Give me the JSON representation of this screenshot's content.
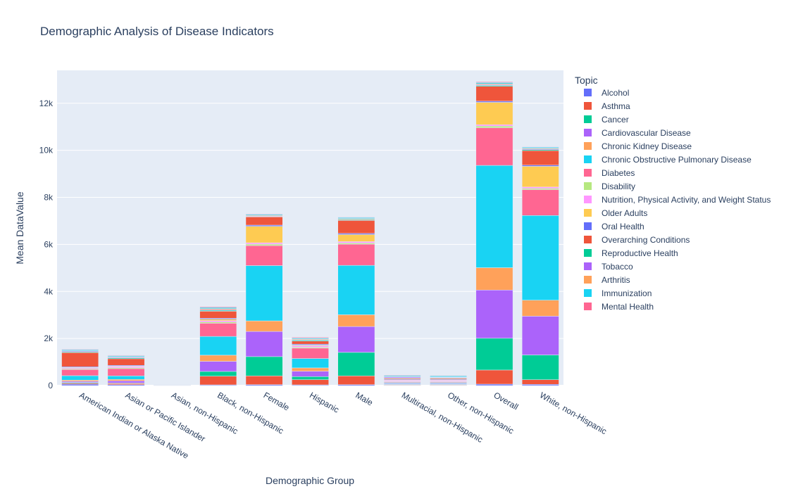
{
  "chart_data": {
    "type": "bar",
    "barmode": "stack",
    "title": "Demographic Analysis of Disease Indicators",
    "xlabel": "Demographic Group",
    "ylabel": "Mean DataValue",
    "ylim": [
      0,
      13400
    ],
    "yticks": [
      0,
      2000,
      4000,
      6000,
      8000,
      10000,
      12000
    ],
    "ytick_labels": [
      "0",
      "2k",
      "4k",
      "6k",
      "8k",
      "10k",
      "12k"
    ],
    "grid": true,
    "legend": {
      "title": "Topic",
      "placement": "right"
    },
    "categories": [
      "American Indian or Alaska Native",
      "Asian or Pacific Islander",
      "Asian, non-Hispanic",
      "Black, non-Hispanic",
      "Female",
      "Hispanic",
      "Male",
      "Multiracial, non-Hispanic",
      "Other, non-Hispanic",
      "Overall",
      "White, non-Hispanic"
    ],
    "series": [
      {
        "name": "Alcohol",
        "color": "#636efa",
        "values": [
          60,
          40,
          5,
          30,
          40,
          30,
          40,
          10,
          10,
          60,
          50
        ]
      },
      {
        "name": "Asthma",
        "color": "#EF553B",
        "values": [
          40,
          50,
          5,
          370,
          370,
          220,
          370,
          20,
          20,
          600,
          200
        ]
      },
      {
        "name": "Cancer",
        "color": "#00cc96",
        "values": [
          30,
          20,
          3,
          200,
          820,
          130,
          1000,
          20,
          20,
          1350,
          1050
        ]
      },
      {
        "name": "Cardiovascular Disease",
        "color": "#ab63fa",
        "values": [
          50,
          90,
          3,
          430,
          1070,
          230,
          1100,
          30,
          30,
          2050,
          1650
        ]
      },
      {
        "name": "Chronic Kidney Disease",
        "color": "#FFA15A",
        "values": [
          50,
          60,
          2,
          260,
          450,
          140,
          500,
          20,
          20,
          950,
          680
        ]
      },
      {
        "name": "Chronic Obstructive Pulmonary Disease",
        "color": "#19d3f3",
        "values": [
          190,
          150,
          3,
          800,
          2350,
          400,
          2100,
          30,
          30,
          4350,
          3600
        ]
      },
      {
        "name": "Diabetes",
        "color": "#FF6692",
        "values": [
          260,
          310,
          3,
          560,
          850,
          440,
          900,
          30,
          30,
          1600,
          1100
        ]
      },
      {
        "name": "Disability",
        "color": "#B6E880",
        "values": [
          30,
          40,
          2,
          50,
          60,
          40,
          50,
          20,
          20,
          70,
          50
        ]
      },
      {
        "name": "Nutrition, Physical Activity, and Weight Status",
        "color": "#FF97FF",
        "values": [
          40,
          50,
          2,
          60,
          60,
          60,
          60,
          40,
          40,
          60,
          60
        ]
      },
      {
        "name": "Older Adults",
        "color": "#FECB52",
        "values": [
          20,
          20,
          2,
          60,
          700,
          30,
          300,
          20,
          20,
          950,
          880
        ]
      },
      {
        "name": "Oral Health",
        "color": "#636efa",
        "values": [
          30,
          30,
          2,
          40,
          50,
          40,
          50,
          30,
          30,
          50,
          50
        ]
      },
      {
        "name": "Overarching Conditions",
        "color": "#EF553B",
        "values": [
          600,
          280,
          5,
          300,
          350,
          130,
          550,
          40,
          40,
          630,
          620
        ]
      },
      {
        "name": "Reproductive Health",
        "color": "#00cc96",
        "values": [
          30,
          40,
          1,
          40,
          20,
          40,
          30,
          20,
          20,
          40,
          40
        ]
      },
      {
        "name": "Tobacco",
        "color": "#ab63fa",
        "values": [
          30,
          30,
          1,
          30,
          20,
          20,
          20,
          40,
          20,
          30,
          30
        ]
      },
      {
        "name": "Arthritis",
        "color": "#FFA15A",
        "values": [
          20,
          20,
          1,
          40,
          30,
          30,
          30,
          20,
          20,
          40,
          30
        ]
      },
      {
        "name": "Immunization",
        "color": "#19d3f3",
        "values": [
          40,
          40,
          1,
          50,
          40,
          40,
          40,
          40,
          40,
          50,
          40
        ]
      },
      {
        "name": "Mental Health",
        "color": "#FF6692",
        "values": [
          20,
          20,
          1,
          30,
          20,
          30,
          20,
          20,
          20,
          30,
          20
        ]
      }
    ]
  }
}
